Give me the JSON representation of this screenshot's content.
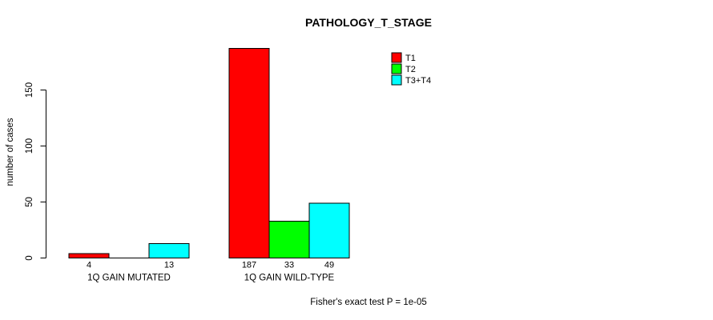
{
  "window": {
    "background_color": "#FFFFFF"
  },
  "chart_data": {
    "type": "bar",
    "title": "PATHOLOGY_T_STAGE",
    "ylabel": "number of cases",
    "xlabel": "",
    "categories": [
      "1Q GAIN MUTATED",
      "1Q GAIN WILD-TYPE"
    ],
    "series": [
      {
        "name": "T1",
        "color": "#FF0000",
        "values": [
          4,
          187
        ]
      },
      {
        "name": "T2",
        "color": "#00FF00",
        "values": [
          0,
          33
        ]
      },
      {
        "name": "T3+T4",
        "color": "#00FFFF",
        "values": [
          13,
          49
        ]
      }
    ],
    "bar_value_labels": [
      [
        "4",
        "",
        "13"
      ],
      [
        "187",
        "33",
        "49"
      ]
    ],
    "yticks": [
      0,
      50,
      100,
      150
    ],
    "ylim": [
      0,
      190
    ],
    "grid": false,
    "legend_position": "inside-top-right",
    "bar_outline_color": "#000000",
    "axis_color": "#000000",
    "footnote": "Fisher's exact test P = 1e-05"
  }
}
